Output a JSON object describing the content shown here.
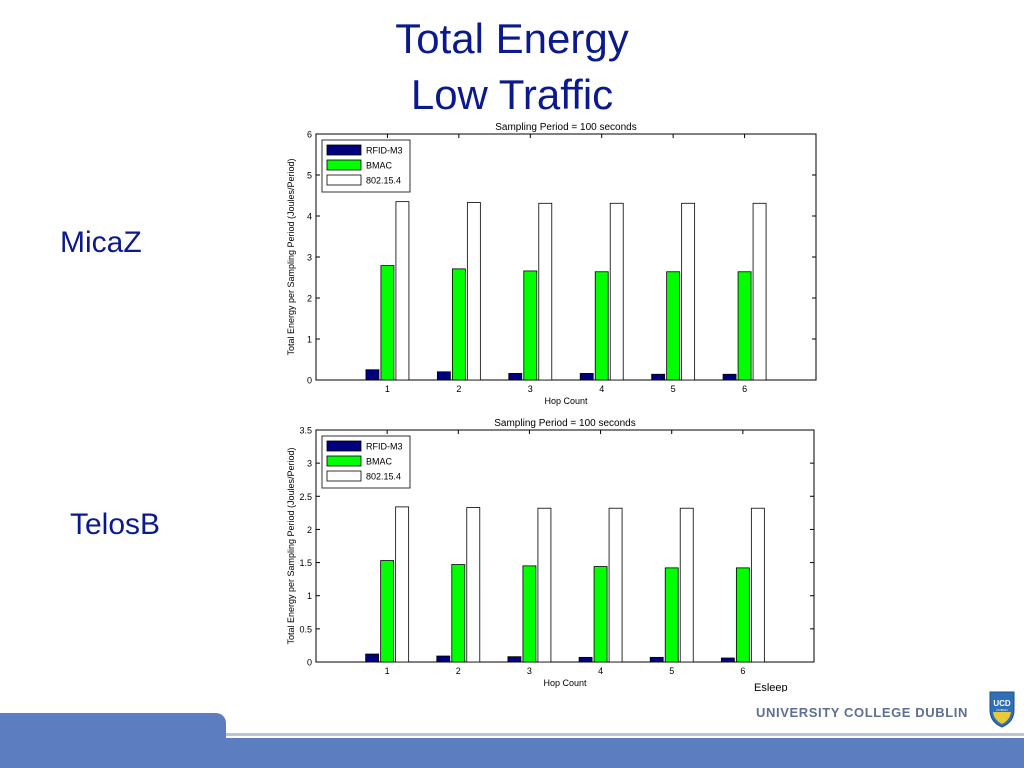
{
  "slide": {
    "title_line1": "Total Energy",
    "title_line2": "Low Traffic",
    "label_top": "MicaZ",
    "label_bottom": "TelosB",
    "footer_text": "UNIVERSITY COLLEGE DUBLIN",
    "logo_text": "UCD",
    "logo_subtext": "DUBLIN",
    "stray_text": "Esleep"
  },
  "colors": {
    "rfid": "#00007f",
    "bmac": "#00ff00",
    "ieee": "#ffffff",
    "title": "#0a1a8c",
    "footer": "#5a7ebf"
  },
  "chart_data": [
    {
      "type": "bar",
      "title": "Sampling Period = 100 seconds",
      "xlabel": "Hop Count",
      "ylabel": "Total Energy per Sampling Period (Joules/Period)",
      "categories": [
        "1",
        "2",
        "3",
        "4",
        "5",
        "6"
      ],
      "ylim": [
        0,
        6
      ],
      "yticks": [
        0,
        1,
        2,
        3,
        4,
        5,
        6
      ],
      "legend_position": "top-left",
      "series": [
        {
          "name": "RFID-M3",
          "values": [
            0.25,
            0.2,
            0.16,
            0.16,
            0.14,
            0.14
          ]
        },
        {
          "name": "BMAC",
          "values": [
            2.79,
            2.71,
            2.66,
            2.64,
            2.64,
            2.64
          ]
        },
        {
          "name": "802.15.4",
          "values": [
            4.35,
            4.33,
            4.31,
            4.31,
            4.31,
            4.31
          ]
        }
      ]
    },
    {
      "type": "bar",
      "title": "Sampling Period = 100 seconds",
      "xlabel": "Hop Count",
      "ylabel": "Total Energy per Sampling Period (Joules/Period)",
      "categories": [
        "1",
        "2",
        "3",
        "4",
        "5",
        "6"
      ],
      "ylim": [
        0,
        3.5
      ],
      "yticks": [
        0,
        0.5,
        1,
        1.5,
        2,
        2.5,
        3,
        3.5
      ],
      "legend_position": "top-left",
      "series": [
        {
          "name": "RFID-M3",
          "values": [
            0.12,
            0.09,
            0.08,
            0.07,
            0.07,
            0.06
          ]
        },
        {
          "name": "BMAC",
          "values": [
            1.53,
            1.47,
            1.45,
            1.44,
            1.42,
            1.42
          ]
        },
        {
          "name": "802.15.4",
          "values": [
            2.34,
            2.33,
            2.32,
            2.32,
            2.32,
            2.32
          ]
        }
      ]
    }
  ]
}
